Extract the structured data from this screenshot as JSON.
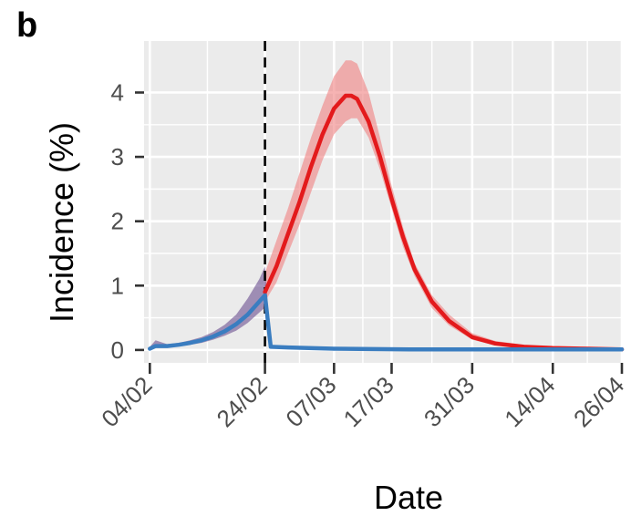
{
  "panel_label": "b",
  "chart_data": {
    "type": "line",
    "xlabel": "Date",
    "ylabel": "Incidence (%)",
    "xlim": [
      "2020-02-03",
      "2020-04-26"
    ],
    "ylim": [
      -0.2,
      4.8
    ],
    "yticks": [
      0,
      1,
      2,
      3,
      4
    ],
    "xticks": [
      {
        "date": "2020-02-04",
        "label": "04/02"
      },
      {
        "date": "2020-02-24",
        "label": "24/02"
      },
      {
        "date": "2020-03-07",
        "label": "07/03"
      },
      {
        "date": "2020-03-17",
        "label": "17/03"
      },
      {
        "date": "2020-03-31",
        "label": "31/03"
      },
      {
        "date": "2020-04-14",
        "label": "14/04"
      },
      {
        "date": "2020-04-26",
        "label": "26/04"
      }
    ],
    "grid": true,
    "vline": {
      "date": "2020-02-24",
      "style": "dashed",
      "color": "#000000"
    },
    "series": [
      {
        "color": "#e31a1c",
        "band_color": "#f08080",
        "x": [
          "2020-02-24",
          "2020-02-26",
          "2020-02-28",
          "2020-03-01",
          "2020-03-03",
          "2020-03-05",
          "2020-03-07",
          "2020-03-09",
          "2020-03-10",
          "2020-03-11",
          "2020-03-13",
          "2020-03-15",
          "2020-03-17",
          "2020-03-19",
          "2020-03-21",
          "2020-03-24",
          "2020-03-27",
          "2020-03-31",
          "2020-04-04",
          "2020-04-09",
          "2020-04-14",
          "2020-04-20",
          "2020-04-26"
        ],
        "y": [
          0.9,
          1.3,
          1.8,
          2.3,
          2.85,
          3.35,
          3.75,
          3.95,
          3.95,
          3.9,
          3.55,
          3.0,
          2.35,
          1.75,
          1.25,
          0.75,
          0.45,
          0.2,
          0.1,
          0.05,
          0.03,
          0.02,
          0.01
        ],
        "lower": [
          0.75,
          1.05,
          1.5,
          1.95,
          2.45,
          2.95,
          3.35,
          3.55,
          3.6,
          3.6,
          3.3,
          2.8,
          2.2,
          1.6,
          1.15,
          0.65,
          0.38,
          0.16,
          0.07,
          0.03,
          0.02,
          0.01,
          0.0
        ],
        "upper": [
          1.2,
          1.7,
          2.2,
          2.75,
          3.3,
          3.8,
          4.25,
          4.5,
          4.5,
          4.45,
          4.0,
          3.3,
          2.55,
          1.9,
          1.35,
          0.85,
          0.55,
          0.26,
          0.14,
          0.08,
          0.05,
          0.03,
          0.02
        ]
      },
      {
        "color": "#3a7dc0",
        "band_color": "#6a4f8f",
        "x": [
          "2020-02-04",
          "2020-02-05",
          "2020-02-07",
          "2020-02-09",
          "2020-02-11",
          "2020-02-13",
          "2020-02-15",
          "2020-02-17",
          "2020-02-19",
          "2020-02-21",
          "2020-02-23",
          "2020-02-24",
          "2020-02-25",
          "2020-02-28",
          "2020-03-07",
          "2020-03-20",
          "2020-04-04",
          "2020-04-26"
        ],
        "y": [
          0.02,
          0.06,
          0.06,
          0.08,
          0.11,
          0.15,
          0.21,
          0.29,
          0.4,
          0.55,
          0.75,
          0.85,
          0.05,
          0.04,
          0.02,
          0.01,
          0.01,
          0.01
        ],
        "lower": [
          0.0,
          0.04,
          0.04,
          0.06,
          0.08,
          0.11,
          0.16,
          0.22,
          0.3,
          0.42,
          0.58,
          0.66,
          0.03,
          0.02,
          0.01,
          0.0,
          0.0,
          0.0
        ],
        "upper": [
          0.05,
          0.15,
          0.09,
          0.11,
          0.15,
          0.2,
          0.28,
          0.39,
          0.55,
          0.8,
          1.1,
          1.3,
          0.08,
          0.06,
          0.03,
          0.02,
          0.02,
          0.02
        ]
      }
    ]
  }
}
